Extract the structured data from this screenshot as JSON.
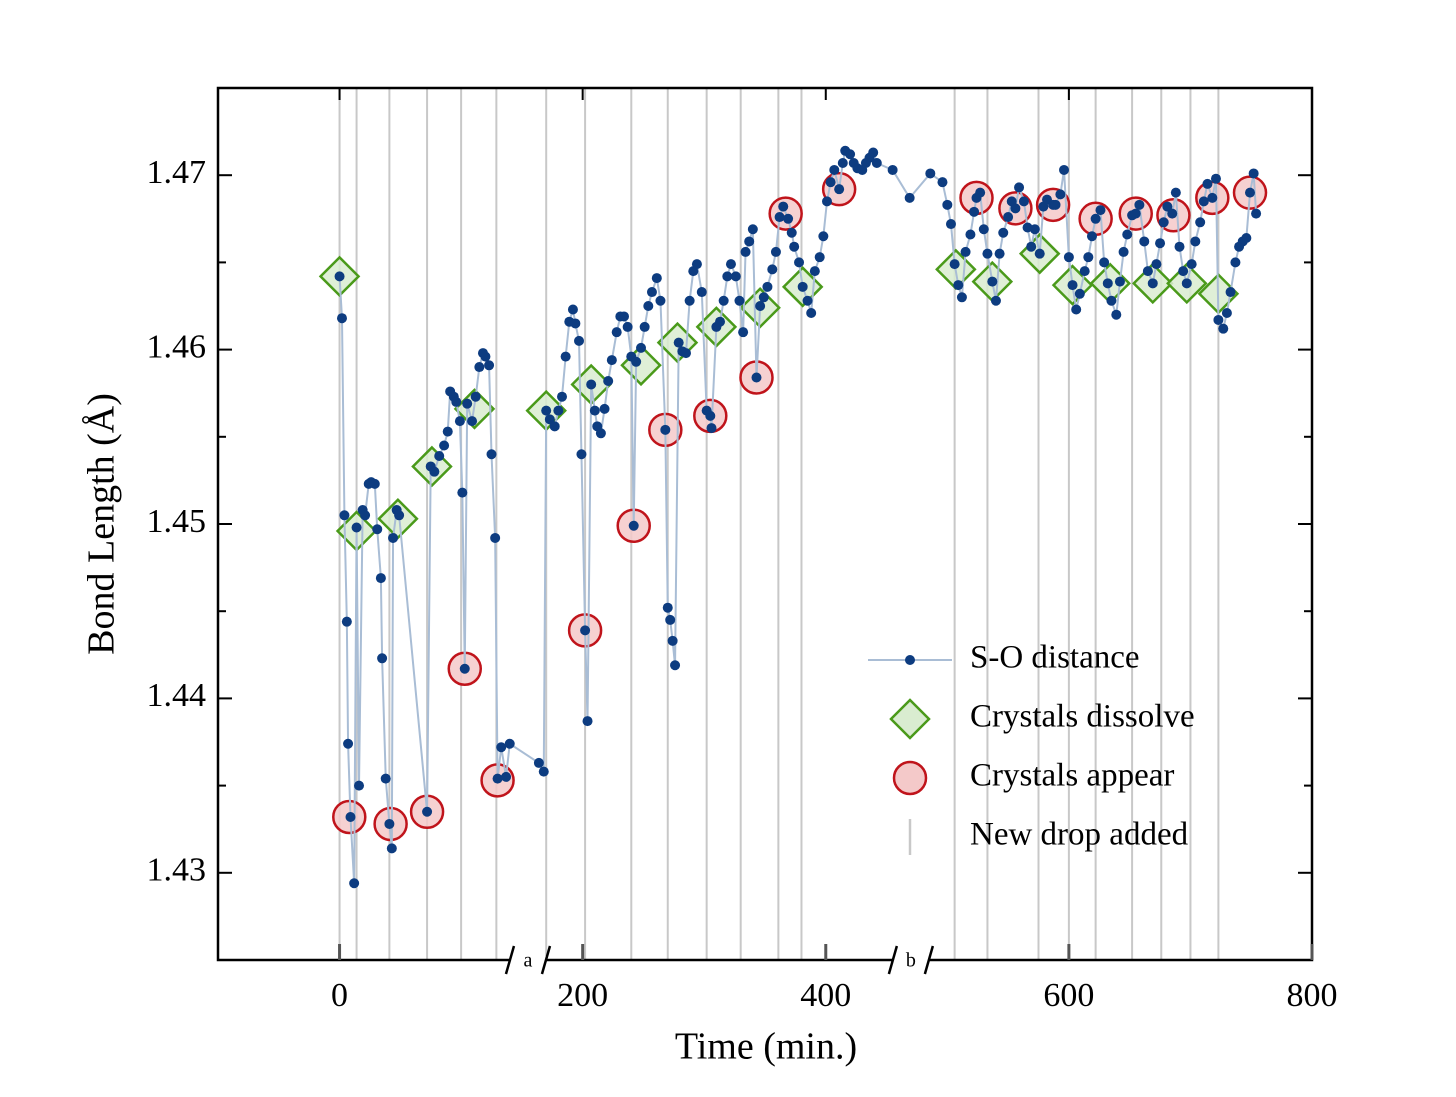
{
  "chart_data": {
    "type": "scatter",
    "x_label": "Time (min.)",
    "y_label": "Bond Length (Å)",
    "xlim": [
      -100,
      800
    ],
    "ylim": [
      1.425,
      1.475
    ],
    "xticks": [
      0,
      200,
      400,
      600,
      800
    ],
    "yticks": [
      1.43,
      1.44,
      1.45,
      1.46,
      1.47
    ],
    "yticks_minor": [
      1.435,
      1.445,
      1.455,
      1.465
    ],
    "legend": "lower right",
    "annotations": [
      {
        "text": "a",
        "x": 155
      },
      {
        "text": "b",
        "x": 470
      }
    ],
    "series": [
      {
        "name": "S-O distance",
        "marker": "dot",
        "color": "#0d3c80",
        "line_color": "#a9bdd5",
        "x": [
          0,
          2,
          4,
          6,
          7,
          9,
          12,
          14,
          16,
          19,
          21,
          24,
          26,
          29,
          31,
          34,
          35,
          38,
          41,
          43,
          44,
          47,
          49,
          72,
          75,
          78,
          82,
          86,
          89,
          91,
          94,
          96,
          99,
          101,
          103,
          105,
          109,
          112,
          115,
          118,
          120,
          123,
          125,
          128,
          130,
          133,
          137,
          140,
          164,
          168,
          170,
          173,
          177,
          180,
          183,
          186,
          189,
          192,
          194,
          197,
          199,
          202,
          204,
          207,
          210,
          212,
          215,
          218,
          221,
          224,
          228,
          231,
          234,
          237,
          240,
          242,
          244,
          248,
          251,
          254,
          257,
          261,
          264,
          268,
          270,
          272,
          274,
          276,
          279,
          282,
          285,
          288,
          291,
          294,
          298,
          302,
          305,
          306,
          310,
          313,
          316,
          319,
          322,
          326,
          329,
          332,
          334,
          337,
          340,
          343,
          346,
          349,
          352,
          356,
          359,
          362,
          365,
          369,
          372,
          374,
          378,
          381,
          385,
          388,
          391,
          395,
          398,
          401,
          404,
          407,
          411,
          414,
          416,
          420,
          423,
          426,
          430,
          433,
          436,
          439,
          442,
          455,
          469,
          486,
          496,
          500,
          503,
          506,
          509,
          512,
          515,
          519,
          522,
          524,
          527,
          530,
          533,
          537,
          540,
          543,
          546,
          550,
          553,
          556,
          559,
          563,
          566,
          569,
          572,
          576,
          579,
          582,
          587,
          589,
          593,
          596,
          600,
          603,
          606,
          609,
          613,
          616,
          619,
          622,
          626,
          629,
          632,
          635,
          639,
          642,
          645,
          648,
          652,
          655,
          658,
          662,
          665,
          669,
          672,
          675,
          678,
          681,
          685,
          688,
          691,
          694,
          697,
          701,
          704,
          708,
          711,
          714,
          718,
          721,
          723,
          727,
          730,
          733,
          737,
          740,
          743,
          746,
          749,
          752,
          754
        ],
        "values": [
          1.4642,
          1.4618,
          1.4505,
          1.4444,
          1.4374,
          1.4332,
          1.4294,
          1.4498,
          1.435,
          1.4508,
          1.4505,
          1.4523,
          1.4524,
          1.4523,
          1.4497,
          1.4469,
          1.4423,
          1.4354,
          1.4328,
          1.4314,
          1.4492,
          1.4508,
          1.4505,
          1.4335,
          1.4533,
          1.453,
          1.4539,
          1.4545,
          1.4553,
          1.4576,
          1.4573,
          1.457,
          1.4559,
          1.4518,
          1.4417,
          1.4569,
          1.4559,
          1.4573,
          1.459,
          1.4598,
          1.4596,
          1.4591,
          1.454,
          1.4492,
          1.4354,
          1.4372,
          1.4355,
          1.4374,
          1.4363,
          1.4358,
          1.4565,
          1.456,
          1.4556,
          1.4565,
          1.4573,
          1.4596,
          1.4616,
          1.4623,
          1.4615,
          1.4605,
          1.454,
          1.4439,
          1.4387,
          1.458,
          1.4565,
          1.4556,
          1.4552,
          1.4566,
          1.4582,
          1.4594,
          1.461,
          1.4619,
          1.4619,
          1.4613,
          1.4596,
          1.4499,
          1.4593,
          1.4601,
          1.4613,
          1.4625,
          1.4633,
          1.4641,
          1.4628,
          1.4554,
          1.4452,
          1.4445,
          1.4433,
          1.4419,
          1.4604,
          1.4599,
          1.4598,
          1.4628,
          1.4645,
          1.4649,
          1.4633,
          1.4565,
          1.4562,
          1.4555,
          1.4613,
          1.4616,
          1.4628,
          1.4642,
          1.4649,
          1.4642,
          1.4628,
          1.461,
          1.4656,
          1.4662,
          1.4669,
          1.4584,
          1.4625,
          1.463,
          1.4636,
          1.4646,
          1.4656,
          1.4676,
          1.4682,
          1.4675,
          1.4667,
          1.4659,
          1.465,
          1.4636,
          1.4628,
          1.4621,
          1.4645,
          1.4653,
          1.4665,
          1.4685,
          1.4696,
          1.4703,
          1.4692,
          1.4707,
          1.4714,
          1.4712,
          1.4707,
          1.4704,
          1.4703,
          1.4707,
          1.471,
          1.4713,
          1.4707,
          1.4703,
          1.4687,
          1.4701,
          1.4696,
          1.4683,
          1.4672,
          1.4649,
          1.4637,
          1.463,
          1.4656,
          1.4666,
          1.4679,
          1.4687,
          1.469,
          1.4669,
          1.4655,
          1.4639,
          1.4628,
          1.4655,
          1.4667,
          1.4676,
          1.4685,
          1.4681,
          1.4693,
          1.4685,
          1.467,
          1.4659,
          1.4669,
          1.4655,
          1.4682,
          1.4686,
          1.4683,
          1.4683,
          1.4689,
          1.4703,
          1.4653,
          1.4637,
          1.4623,
          1.4632,
          1.4645,
          1.4653,
          1.4665,
          1.4675,
          1.468,
          1.465,
          1.4638,
          1.4628,
          1.462,
          1.4639,
          1.4656,
          1.4666,
          1.4677,
          1.4678,
          1.4683,
          1.4662,
          1.4645,
          1.4638,
          1.4649,
          1.4661,
          1.4673,
          1.4682,
          1.4678,
          1.469,
          1.4659,
          1.4645,
          1.4638,
          1.4649,
          1.4662,
          1.4673,
          1.4685,
          1.4695,
          1.4687,
          1.4698,
          1.4617,
          1.4612,
          1.4621,
          1.4633,
          1.465,
          1.4659,
          1.4662,
          1.4664,
          1.469,
          1.4701,
          1.4678
        ]
      },
      {
        "name": "Crystals dissolve",
        "marker": "diamond",
        "color": "#4a9a1a",
        "fill": "#d9ecd0",
        "x": [
          0,
          14,
          48,
          76,
          111,
          170,
          207,
          248,
          278,
          310,
          346,
          381,
          507,
          537,
          576,
          603,
          634,
          669,
          697,
          723
        ],
        "values": [
          1.4642,
          1.4496,
          1.4503,
          1.4533,
          1.4566,
          1.4565,
          1.458,
          1.4591,
          1.4604,
          1.4613,
          1.4624,
          1.4636,
          1.4646,
          1.4639,
          1.4655,
          1.4637,
          1.4638,
          1.4638,
          1.4638,
          1.4632
        ]
      },
      {
        "name": "Crystals appear",
        "marker": "circle",
        "color": "#c0141b",
        "fill": "#f4c9c9",
        "x": [
          8,
          42,
          72,
          103,
          130,
          202,
          242,
          268,
          305,
          343,
          367,
          411,
          524,
          556,
          587,
          622,
          655,
          686,
          718,
          749
        ],
        "values": [
          1.4332,
          1.4328,
          1.4335,
          1.4417,
          1.4353,
          1.4439,
          1.4499,
          1.4554,
          1.4562,
          1.4584,
          1.4678,
          1.4692,
          1.4687,
          1.4681,
          1.4683,
          1.4675,
          1.4678,
          1.4677,
          1.4687,
          1.469
        ]
      },
      {
        "name": "New drop added",
        "marker": "vline",
        "color": "#c8c8c8",
        "x": [
          0,
          14,
          41,
          72,
          100,
          129,
          170,
          202,
          240,
          270,
          302,
          330,
          361,
          380,
          506,
          533,
          575,
          600,
          622,
          652,
          676,
          700,
          723
        ]
      }
    ]
  }
}
